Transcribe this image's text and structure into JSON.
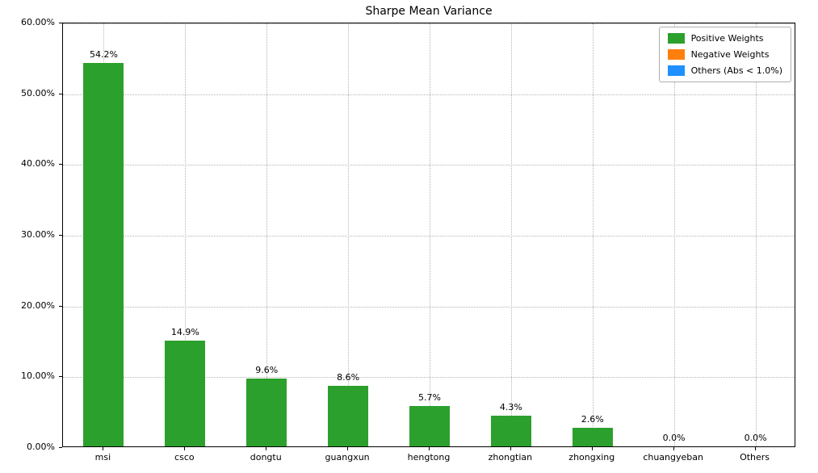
{
  "chart_data": {
    "type": "bar",
    "title": "Sharpe Mean Variance",
    "categories": [
      "msi",
      "csco",
      "dongtu",
      "guangxun",
      "hengtong",
      "zhongtian",
      "zhongxing",
      "chuangyeban",
      "Others"
    ],
    "values": [
      54.2,
      14.9,
      9.6,
      8.6,
      5.7,
      4.3,
      2.6,
      0.0,
      0.0
    ],
    "bar_labels": [
      "54.2%",
      "14.9%",
      "9.6%",
      "8.6%",
      "5.7%",
      "4.3%",
      "2.6%",
      "0.0%",
      "0.0%"
    ],
    "bar_color": "#2ca02c",
    "ylim": [
      0,
      60
    ],
    "ytick_step": 10,
    "ytick_labels": [
      "0.00%",
      "10.00%",
      "20.00%",
      "30.00%",
      "40.00%",
      "50.00%",
      "60.00%"
    ],
    "grid": true,
    "legend": {
      "position": "top-right",
      "entries": [
        {
          "label": "Positive Weights",
          "color": "#2ca02c"
        },
        {
          "label": "Negative Weights",
          "color": "#ff7f0e"
        },
        {
          "label": "Others (Abs < 1.0%)",
          "color": "#1e90ff"
        }
      ]
    }
  }
}
